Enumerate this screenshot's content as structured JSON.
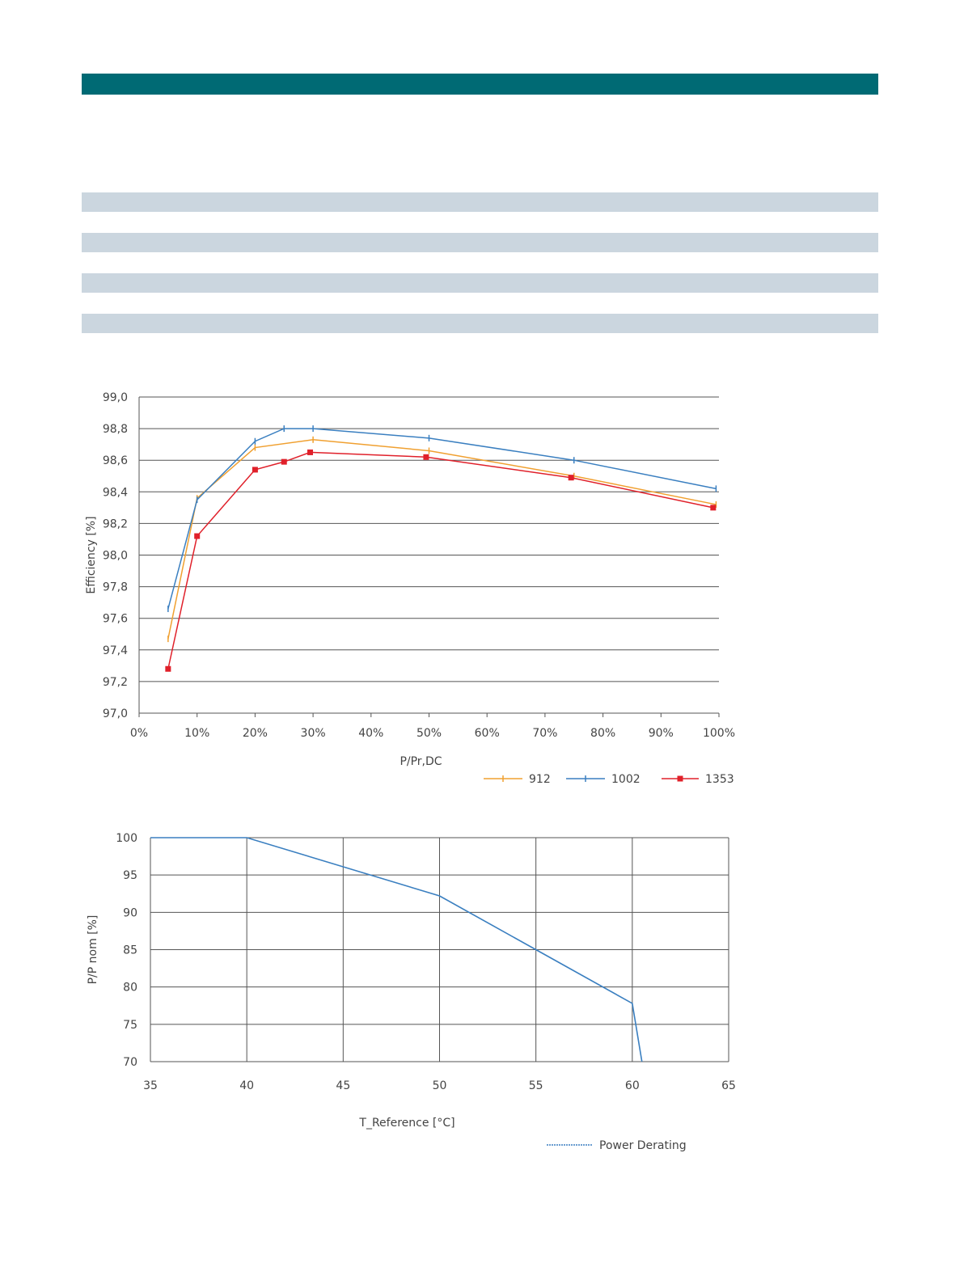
{
  "colors": {
    "header": "#006a74",
    "band": "#cbd6df",
    "grid": "#555555",
    "series": [
      "#f0a030",
      "#3a7fc0",
      "#e0202a"
    ],
    "derating": "#3a7fc0"
  },
  "chart_data": [
    {
      "type": "line",
      "title": "",
      "xlabel": "P/Pr,DC",
      "ylabel": "Efficiency [%]",
      "xlim": [
        0,
        100
      ],
      "ylim": [
        97.0,
        99.0
      ],
      "x_ticks": [
        "0%",
        "10%",
        "20%",
        "30%",
        "40%",
        "50%",
        "60%",
        "70%",
        "80%",
        "90%",
        "100%"
      ],
      "y_ticks": [
        "97,0",
        "97,2",
        "97,4",
        "97,6",
        "97,8",
        "98,0",
        "98,2",
        "98,4",
        "98,6",
        "98,8",
        "99,0"
      ],
      "grid": true,
      "legend": "bottom-right",
      "series": [
        {
          "name": "912",
          "marker": "tick",
          "x": [
            5,
            10,
            20,
            30,
            50,
            75,
            99.5
          ],
          "y": [
            97.47,
            98.36,
            98.68,
            98.73,
            98.66,
            98.5,
            98.32
          ]
        },
        {
          "name": "1002",
          "marker": "tick",
          "x": [
            5,
            10,
            20,
            25,
            30,
            50,
            75,
            99.5
          ],
          "y": [
            97.66,
            98.35,
            98.72,
            98.8,
            98.8,
            98.74,
            98.6,
            98.42
          ]
        },
        {
          "name": "1353",
          "marker": "square",
          "x": [
            5,
            10,
            20,
            25,
            29.5,
            49.5,
            74.5,
            99
          ],
          "y": [
            97.28,
            98.12,
            98.54,
            98.59,
            98.65,
            98.62,
            98.49,
            98.3
          ]
        }
      ]
    },
    {
      "type": "line",
      "title": "",
      "xlabel": "T_Reference [°C]",
      "ylabel": "P/P nom [%]",
      "xlim": [
        35,
        65
      ],
      "ylim": [
        70,
        100
      ],
      "x_ticks": [
        "35",
        "40",
        "45",
        "50",
        "55",
        "60",
        "65"
      ],
      "y_ticks": [
        "70",
        "75",
        "80",
        "85",
        "90",
        "95",
        "100"
      ],
      "grid": true,
      "legend": "bottom-right",
      "series": [
        {
          "name": "Power Derating",
          "x": [
            35,
            40,
            50,
            55,
            60,
            60.5
          ],
          "y": [
            100,
            100,
            92.2,
            85,
            77.8,
            70
          ]
        }
      ]
    }
  ]
}
